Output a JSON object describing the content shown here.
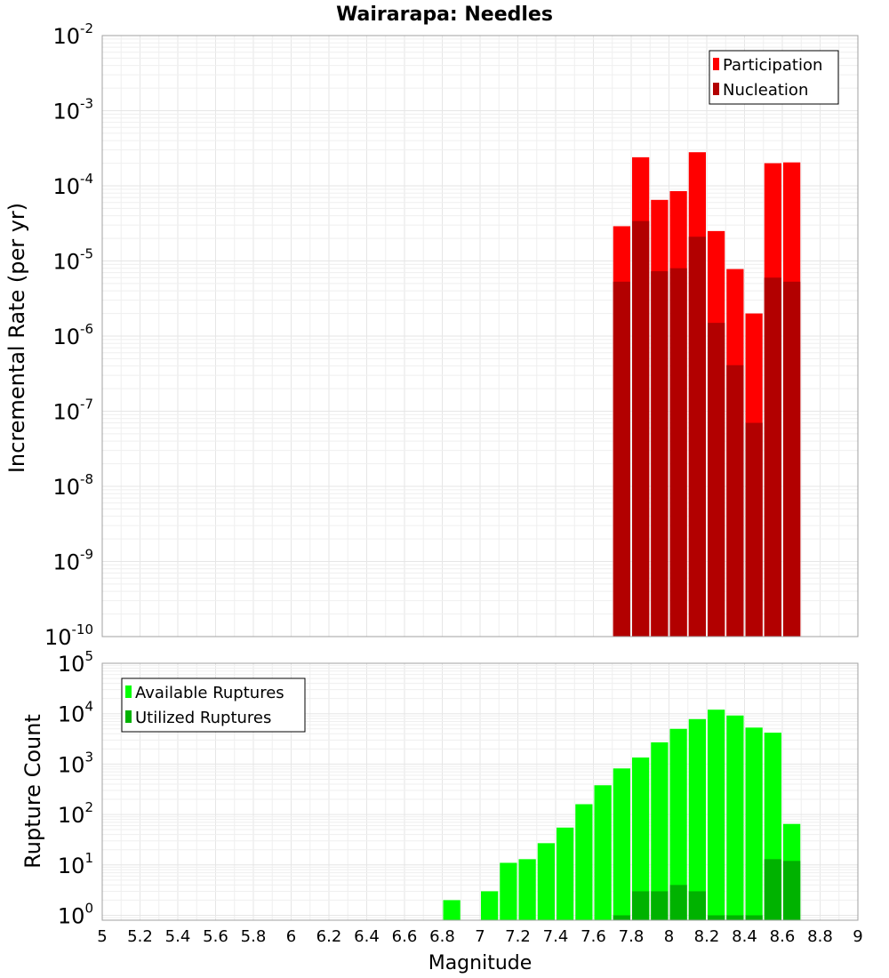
{
  "title": "Wairarapa: Needles",
  "colors": {
    "participation": "#ff0000",
    "nucleation": "#b20000",
    "available": "#00ff00",
    "utilized": "#00b200"
  },
  "chart_data": [
    {
      "type": "bar",
      "panel": "top",
      "ylabel": "Incremental Rate (per yr)",
      "yscale": "log",
      "ylim": [
        1e-10,
        0.01
      ],
      "xlim": [
        5,
        9
      ],
      "grid": true,
      "legend_position": "top-right",
      "x": [
        7.75,
        7.85,
        7.95,
        8.05,
        8.15,
        8.25,
        8.35,
        8.45,
        8.55,
        8.65
      ],
      "series": [
        {
          "name": "Participation",
          "color_key": "participation",
          "values": [
            2.9e-05,
            0.00024,
            6.5e-05,
            8.5e-05,
            0.00028,
            2.5e-05,
            7.8e-06,
            2e-06,
            0.0002,
            0.000205
          ]
        },
        {
          "name": "Nucleation",
          "color_key": "nucleation",
          "values": [
            5.3e-06,
            3.4e-05,
            7.3e-06,
            8e-06,
            2.1e-05,
            1.5e-06,
            4.1e-07,
            7e-08,
            6e-06,
            5.3e-06
          ]
        }
      ]
    },
    {
      "type": "bar",
      "panel": "bottom",
      "ylabel": "Rupture Count",
      "xlabel": "Magnitude",
      "yscale": "log",
      "ylim": [
        0.8,
        100000.0
      ],
      "xlim": [
        5,
        9
      ],
      "grid": true,
      "legend_position": "top-left",
      "x": [
        6.85,
        7.05,
        7.15,
        7.25,
        7.35,
        7.45,
        7.55,
        7.65,
        7.75,
        7.85,
        7.95,
        8.05,
        8.15,
        8.25,
        8.35,
        8.45,
        8.55,
        8.65
      ],
      "x_ticks": [
        "5",
        "5.2",
        "5.4",
        "5.6",
        "5.8",
        "6",
        "6.2",
        "6.4",
        "6.6",
        "6.8",
        "7",
        "7.2",
        "7.4",
        "7.6",
        "7.8",
        "8",
        "8.2",
        "8.4",
        "8.6",
        "8.8",
        "9"
      ],
      "series": [
        {
          "name": "Available Ruptures",
          "color_key": "available",
          "values": [
            2,
            3,
            11,
            13,
            27,
            55,
            160,
            380,
            820,
            1350,
            2700,
            5000,
            7800,
            12000,
            9200,
            5300,
            4200,
            65
          ]
        },
        {
          "name": "Utilized Ruptures",
          "color_key": "utilized",
          "values": [
            0,
            0,
            0,
            0,
            0,
            0,
            0,
            0,
            1,
            3,
            3,
            4,
            3,
            1,
            1,
            1,
            13,
            12
          ]
        }
      ]
    }
  ]
}
